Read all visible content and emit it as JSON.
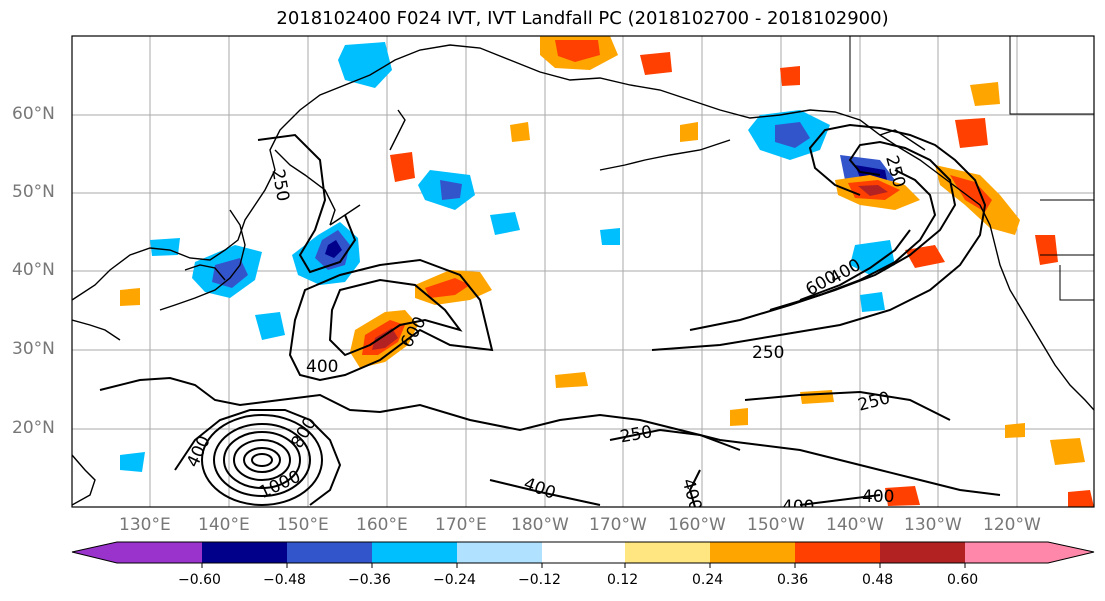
{
  "title": "2018102400 F024 IVT, IVT Landfall PC (2018102700 - 2018102900)",
  "lat_labels": [
    "60°N",
    "50°N",
    "40°N",
    "30°N",
    "20°N"
  ],
  "lon_labels": [
    "130°E",
    "140°E",
    "150°E",
    "160°E",
    "170°E",
    "180°W",
    "170°W",
    "160°W",
    "150°W",
    "140°W",
    "130°W",
    "120°W"
  ],
  "contour_labels": [
    "250",
    "400",
    "600",
    "800",
    "1000",
    "250",
    "400",
    "600",
    "250",
    "250",
    "250",
    "400",
    "400",
    "400",
    "400"
  ],
  "colorbar": {
    "tick_labels": [
      "−0.60",
      "−0.48",
      "−0.36",
      "−0.24",
      "−0.12",
      "0.12",
      "0.24",
      "0.36",
      "0.48",
      "0.60"
    ],
    "colors": [
      "#9933cc",
      "#00008b",
      "#3355cc",
      "#00bfff",
      "#b0e2ff",
      "#ffffff",
      "#ffe680",
      "#ffa500",
      "#ff4000",
      "#b22222",
      "#ff88aa"
    ]
  }
}
